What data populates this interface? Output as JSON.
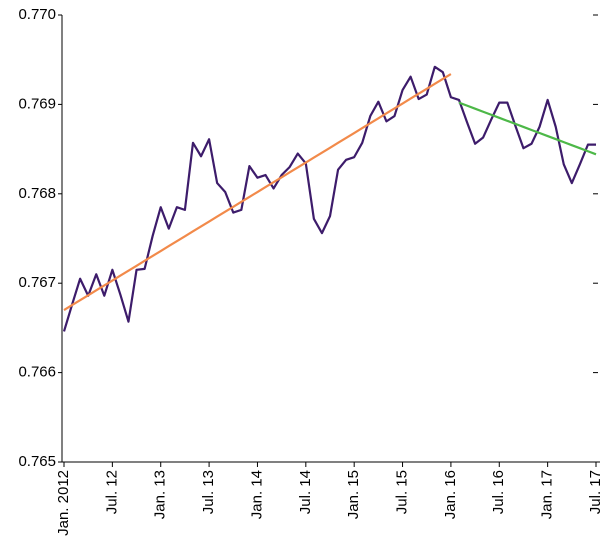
{
  "chart_data": {
    "type": "line",
    "categories": [
      "Jan. 2012",
      null,
      null,
      null,
      null,
      null,
      "Jul. 12",
      null,
      null,
      null,
      null,
      null,
      "Jan. 13",
      null,
      null,
      null,
      null,
      null,
      "Jul. 13",
      null,
      null,
      null,
      null,
      null,
      "Jan. 14",
      null,
      null,
      null,
      null,
      null,
      "Jul. 14",
      null,
      null,
      null,
      null,
      null,
      "Jan. 15",
      null,
      null,
      null,
      null,
      null,
      "Jul. 15",
      null,
      null,
      null,
      null,
      null,
      "Jan. 16",
      null,
      null,
      null,
      null,
      null,
      "Jul. 16",
      null,
      null,
      null,
      null,
      null,
      "Jan. 17",
      null,
      null,
      null,
      null,
      null,
      "Jul. 17"
    ],
    "series": [
      {
        "color": "#3d1c6b",
        "values": [
          0.76646,
          0.76676,
          0.76705,
          0.76686,
          0.7671,
          0.76686,
          0.76715,
          0.76687,
          0.76657,
          0.76715,
          0.76716,
          0.76753,
          0.76785,
          0.76761,
          0.76785,
          0.76782,
          0.76857,
          0.76842,
          0.76861,
          0.76812,
          0.76802,
          0.76779,
          0.76782,
          0.76831,
          0.76818,
          0.76821,
          0.76806,
          0.76821,
          0.7683,
          0.76845,
          0.76834,
          0.76772,
          0.76756,
          0.76775,
          0.76827,
          0.76838,
          0.76841,
          0.76857,
          0.76887,
          0.76903,
          0.76881,
          0.76887,
          0.76916,
          0.76931,
          0.76906,
          0.76911,
          0.76942,
          0.76936,
          0.76908,
          0.76905,
          0.7688,
          0.76856,
          0.76863,
          0.76883,
          0.76902,
          0.76902,
          0.76876,
          0.76851,
          0.76856,
          0.76875,
          0.76905,
          0.76875,
          0.76833,
          0.76812,
          0.76833,
          0.76855,
          0.76855
        ]
      },
      {
        "color": "#f28a4a",
        "values": [
          0.7667,
          0.766755,
          0.76681,
          0.766865,
          0.76692,
          0.766975,
          0.76703,
          0.767085,
          0.76714,
          0.767195,
          0.76725,
          0.767305,
          0.76736,
          0.767415,
          0.76747,
          0.767525,
          0.76758,
          0.767635,
          0.76769,
          0.767745,
          0.7678,
          0.767855,
          0.76791,
          0.767965,
          0.76802,
          0.768075,
          0.76813,
          0.768185,
          0.76824,
          0.768295,
          0.76835,
          0.768405,
          0.76846,
          0.768515,
          0.76857,
          0.768625,
          0.76868,
          0.768735,
          0.76879,
          0.768845,
          0.7689,
          0.768955,
          0.76901,
          0.769065,
          0.76912,
          0.769175,
          0.76923,
          0.769285,
          0.76934,
          null,
          null,
          null,
          null,
          null,
          null,
          null,
          null,
          null,
          null,
          null,
          null,
          null,
          null,
          null,
          null,
          null,
          null
        ]
      },
      {
        "color": "#4db848",
        "values": [
          null,
          null,
          null,
          null,
          null,
          null,
          null,
          null,
          null,
          null,
          null,
          null,
          null,
          null,
          null,
          null,
          null,
          null,
          null,
          null,
          null,
          null,
          null,
          null,
          null,
          null,
          null,
          null,
          null,
          null,
          null,
          null,
          null,
          null,
          null,
          null,
          null,
          null,
          null,
          null,
          null,
          null,
          null,
          null,
          null,
          null,
          null,
          null,
          null,
          0.76902,
          0.768986,
          0.768952,
          0.768918,
          0.768884,
          0.76885,
          0.768816,
          0.768782,
          0.768748,
          0.768714,
          0.76868,
          0.768646,
          0.768612,
          0.768578,
          0.768544,
          0.76851,
          0.768476,
          0.768442
        ]
      }
    ],
    "ylim": [
      0.765,
      0.77
    ],
    "yticks": [
      0.765,
      0.766,
      0.767,
      0.768,
      0.769,
      {
        "value": 0.77,
        "label": "0.770"
      }
    ]
  }
}
